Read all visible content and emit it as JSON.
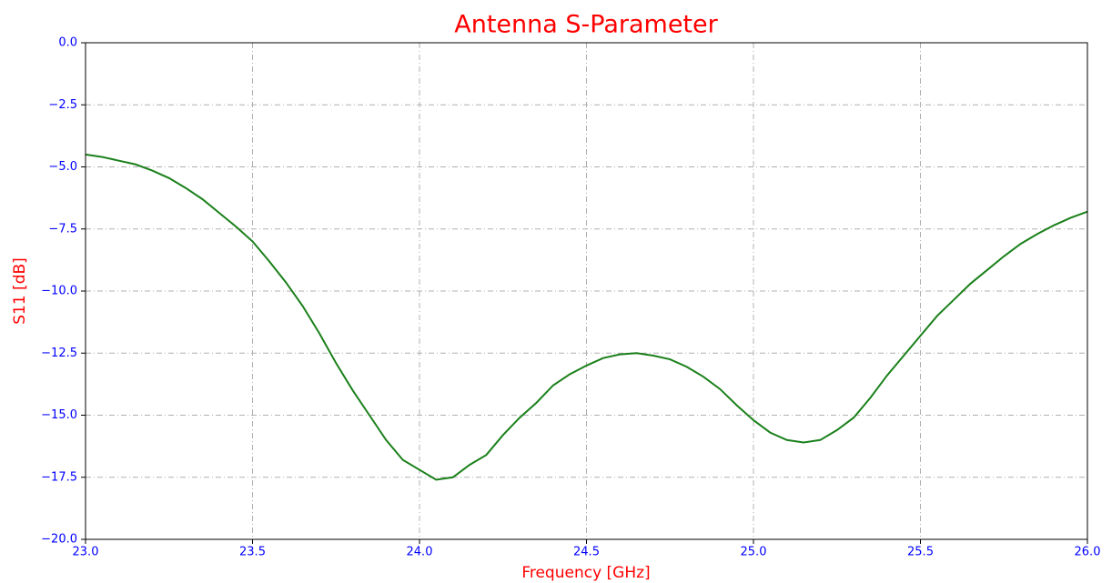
{
  "chart_data": {
    "type": "line",
    "title": "Antenna S-Parameter",
    "xlabel": "Frequency [GHz]",
    "ylabel": "S11 [dB]",
    "xlim": [
      23.0,
      26.0
    ],
    "xticks": [
      {
        "value": 23.0,
        "label": "23.0"
      },
      23.5,
      {
        "value": 24.0,
        "label": "24.0"
      },
      24.5,
      {
        "value": 25.0,
        "label": "25.0"
      },
      25.5,
      {
        "value": 26.0,
        "label": "26.0"
      }
    ],
    "ylim": [
      -20.0,
      0.0
    ],
    "yticks": [
      {
        "value": -20.0,
        "label": "−20.0"
      },
      {
        "value": -17.5,
        "label": "−17.5"
      },
      {
        "value": -15.0,
        "label": "−15.0"
      },
      {
        "value": -12.5,
        "label": "−12.5"
      },
      {
        "value": -10.0,
        "label": "−10.0"
      },
      {
        "value": -7.5,
        "label": "−7.5"
      },
      {
        "value": -5.0,
        "label": "−5.0"
      },
      {
        "value": -2.5,
        "label": "−2.5"
      },
      {
        "value": 0.0,
        "label": "0.0"
      }
    ],
    "grid": true,
    "x": [
      23.0,
      23.05,
      23.1,
      23.15,
      23.2,
      23.25,
      23.3,
      23.35,
      23.4,
      23.45,
      23.5,
      23.55,
      23.6,
      23.65,
      23.7,
      23.75,
      23.8,
      23.85,
      23.9,
      23.95,
      24.0,
      24.05,
      24.1,
      24.15,
      24.2,
      24.25,
      24.3,
      24.35,
      24.4,
      24.45,
      24.5,
      24.55,
      24.6,
      24.65,
      24.7,
      24.75,
      24.8,
      24.85,
      24.9,
      24.95,
      25.0,
      25.05,
      25.1,
      25.15,
      25.2,
      25.25,
      25.3,
      25.35,
      25.4,
      25.45,
      25.5,
      25.55,
      25.6,
      25.65,
      25.7,
      25.75,
      25.8,
      25.85,
      25.9,
      25.95,
      26.0
    ],
    "series": [
      {
        "color": "#1a801a",
        "values": [
          -4.5,
          -4.6,
          -4.75,
          -4.9,
          -5.15,
          -5.45,
          -5.85,
          -6.3,
          -6.85,
          -7.4,
          -8.0,
          -8.8,
          -9.65,
          -10.6,
          -11.7,
          -12.9,
          -14.0,
          -15.0,
          -16.0,
          -16.8,
          -17.2,
          -17.6,
          -17.5,
          -17.0,
          -16.6,
          -15.8,
          -15.1,
          -14.5,
          -13.8,
          -13.35,
          -13.0,
          -12.7,
          -12.55,
          -12.5,
          -12.6,
          -12.75,
          -13.05,
          -13.45,
          -13.95,
          -14.6,
          -15.2,
          -15.7,
          -16.0,
          -16.1,
          -16.0,
          -15.6,
          -15.1,
          -14.3,
          -13.4,
          -12.6,
          -11.8,
          -11.0,
          -10.35,
          -9.7,
          -9.15,
          -8.6,
          -8.1,
          -7.7,
          -7.35,
          -7.05,
          -6.8
        ]
      }
    ]
  }
}
